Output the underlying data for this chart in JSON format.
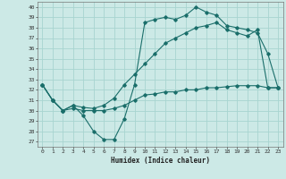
{
  "xlabel": "Humidex (Indice chaleur)",
  "bg_color": "#cce9e6",
  "line_color": "#1a6e6a",
  "grid_color": "#a8d4d0",
  "xlim_min": -0.5,
  "xlim_max": 23.5,
  "ylim_min": 26.5,
  "ylim_max": 40.5,
  "xticks": [
    0,
    1,
    2,
    3,
    4,
    5,
    6,
    7,
    8,
    9,
    10,
    11,
    12,
    13,
    14,
    15,
    16,
    17,
    18,
    19,
    20,
    21,
    22,
    23
  ],
  "yticks": [
    27,
    28,
    29,
    30,
    31,
    32,
    33,
    34,
    35,
    36,
    37,
    38,
    39,
    40
  ],
  "series1_y": [
    32.5,
    31.0,
    30.0,
    30.5,
    29.5,
    28.0,
    27.2,
    27.2,
    29.2,
    32.5,
    38.5,
    38.8,
    39.0,
    38.8,
    39.2,
    40.0,
    39.5,
    39.2,
    38.2,
    38.0,
    37.8,
    37.5,
    35.5,
    32.2
  ],
  "series2_y": [
    32.5,
    31.0,
    30.0,
    30.5,
    30.3,
    30.2,
    30.5,
    31.2,
    32.5,
    33.5,
    34.5,
    35.5,
    36.5,
    37.0,
    37.5,
    38.0,
    38.2,
    38.5,
    37.8,
    37.5,
    37.2,
    37.8,
    32.2,
    32.2
  ],
  "series3_y": [
    32.5,
    31.0,
    30.0,
    30.2,
    30.0,
    30.0,
    30.0,
    30.2,
    30.5,
    31.0,
    31.5,
    31.6,
    31.8,
    31.8,
    32.0,
    32.0,
    32.2,
    32.2,
    32.3,
    32.4,
    32.4,
    32.4,
    32.2,
    32.2
  ],
  "tick_fontsize": 4.5,
  "xlabel_fontsize": 5.5
}
